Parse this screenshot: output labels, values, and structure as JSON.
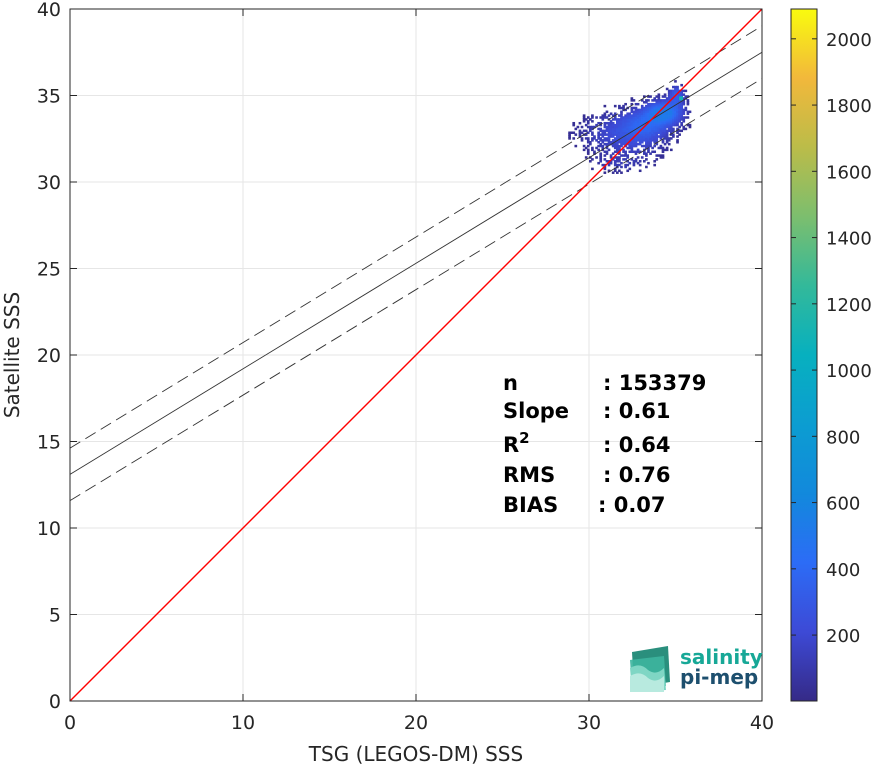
{
  "chart_data": {
    "type": "scatter",
    "subtype": "density-heatmap",
    "xlabel": "TSG (LEGOS-DM) SSS",
    "ylabel": "Satellite SSS",
    "xlim": [
      0,
      40
    ],
    "ylim": [
      0,
      40
    ],
    "xticks": [
      "0",
      "10",
      "20",
      "30",
      "40"
    ],
    "yticks": [
      "0",
      "5",
      "10",
      "15",
      "20",
      "25",
      "30",
      "35",
      "40"
    ],
    "grid": true,
    "identity_line": {
      "color": "#ff0000",
      "x": [
        0,
        40
      ],
      "y": [
        0,
        40
      ]
    },
    "regression": {
      "slope": 0.61,
      "intercept": 13.1,
      "band_offset": 1.52
    },
    "density_range": [
      1,
      2090
    ],
    "colorbar_ticks": [
      "200",
      "400",
      "600",
      "800",
      "1000",
      "1200",
      "1400",
      "1600",
      "1800",
      "2000"
    ],
    "colorbar_values": [
      200,
      400,
      600,
      800,
      1000,
      1200,
      1400,
      1600,
      1800,
      2000
    ],
    "colormap": "parula",
    "clusters": [
      {
        "x": 34.3,
        "y": 34.0,
        "sx": 0.7,
        "sy": 0.45,
        "w": 1.0
      },
      {
        "x": 33.2,
        "y": 33.3,
        "sx": 1.0,
        "sy": 0.6,
        "w": 0.5
      },
      {
        "x": 32.3,
        "y": 32.6,
        "sx": 1.4,
        "sy": 1.0,
        "w": 0.35
      },
      {
        "x": 30.5,
        "y": 32.8,
        "sx": 1.3,
        "sy": 0.6,
        "w": 0.12
      },
      {
        "x": 31.5,
        "y": 31.0,
        "sx": 1.0,
        "sy": 0.3,
        "w": 0.15
      },
      {
        "x": 35.0,
        "y": 35.0,
        "sx": 0.3,
        "sy": 0.4,
        "w": 0.6
      }
    ],
    "peak": {
      "x": 35.2,
      "y": 34.8,
      "value": 1100
    },
    "stats": [
      {
        "label": "n",
        "value": ": 153379"
      },
      {
        "label": "Slope",
        "value": ": 0.61"
      },
      {
        "label": "R",
        "sup": "2",
        "value": ": 0.64"
      },
      {
        "label": "RMS",
        "value": ": 0.76"
      },
      {
        "label": "BIAS",
        "value": ": 0.07"
      }
    ]
  },
  "logo": {
    "line1": "salinity",
    "line2": "pi-mep",
    "color1": "#17a897",
    "color2": "#1d4f6e"
  }
}
